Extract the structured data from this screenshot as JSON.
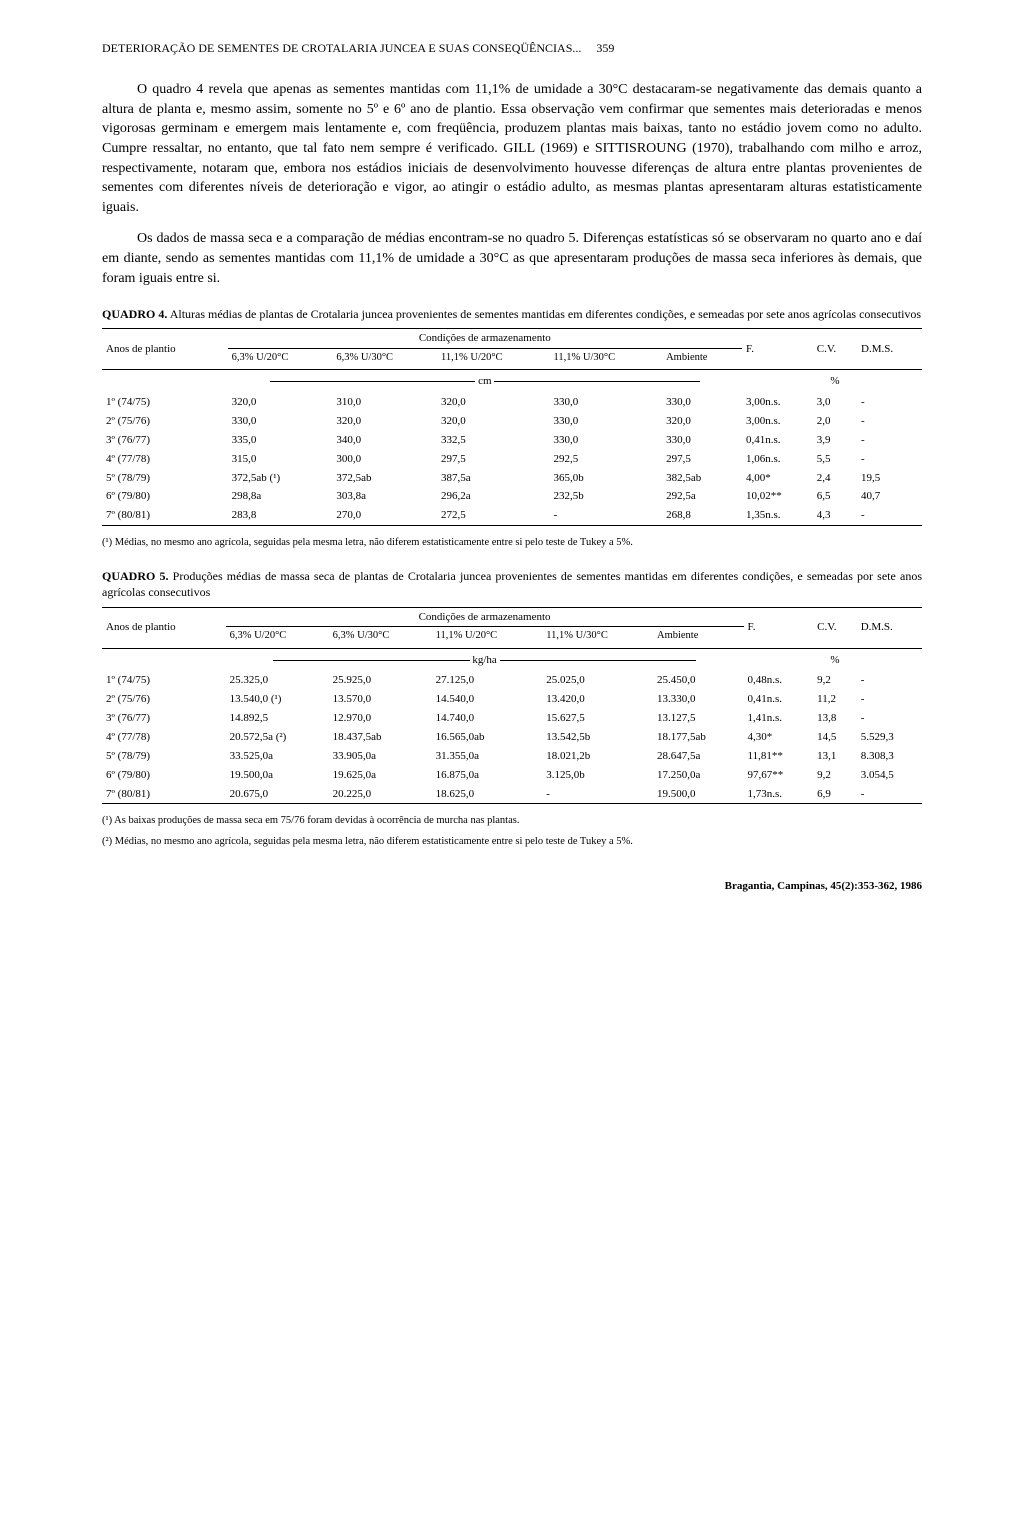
{
  "header": {
    "running_title": "DETERIORAÇÃO DE SEMENTES DE CROTALARIA JUNCEA E SUAS CONSEQÜÊNCIAS...",
    "page_number": "359"
  },
  "paragraphs": {
    "p1": "O quadro 4 revela que apenas as sementes mantidas com 11,1% de umidade a 30°C destacaram-se negativamente das demais quanto a altura de planta e, mesmo assim, somente no 5º e 6º ano de plantio. Essa observação vem confirmar que sementes mais deterioradas e menos vigorosas germinam e emergem mais lentamente e, com freqüência, produzem plantas mais baixas, tanto no estádio jovem como no adulto. Cumpre ressaltar, no entanto, que tal fato nem sempre é verificado. GILL (1969) e SITTISROUNG (1970), trabalhando com milho e arroz, respectivamente, notaram que, embora nos estádios iniciais de desenvolvimento houvesse diferenças de altura entre plantas provenientes de sementes com diferentes níveis de deterioração e vigor, ao atingir o estádio adulto, as mesmas plantas apresentaram alturas estatisticamente iguais.",
    "p2": "Os dados de massa seca e a comparação de médias encontram-se no quadro 5. Diferenças estatísticas só se observaram no quarto ano e daí em diante, sendo as sementes mantidas com 11,1% de umidade a 30°C as que apresentaram produções de massa seca inferiores às demais, que foram iguais entre si."
  },
  "table4": {
    "caption_label": "QUADRO 4.",
    "caption_text": "Alturas médias de plantas de Crotalaria juncea provenientes de sementes mantidas em diferentes condições, e semeadas por sete anos agrícolas consecutivos",
    "col_group_label": "Condições de armazenamento",
    "row_header": "Anos de plantio",
    "stat_cols": {
      "f": "F.",
      "cv": "C.V.",
      "dms": "D.M.S."
    },
    "cond_cols": [
      "6,3% U/20°C",
      "6,3% U/30°C",
      "11,1% U/20°C",
      "11,1% U/30°C",
      "Ambiente"
    ],
    "unit_left": "cm",
    "unit_right": "%",
    "rows": [
      {
        "year": "1º (74/75)",
        "c1": "320,0",
        "c2": "310,0",
        "c3": "320,0",
        "c4": "330,0",
        "c5": "330,0",
        "f": "3,00n.s.",
        "cv": "3,0",
        "dms": "-"
      },
      {
        "year": "2º (75/76)",
        "c1": "330,0",
        "c2": "320,0",
        "c3": "320,0",
        "c4": "330,0",
        "c5": "320,0",
        "f": "3,00n.s.",
        "cv": "2,0",
        "dms": "-"
      },
      {
        "year": "3º (76/77)",
        "c1": "335,0",
        "c2": "340,0",
        "c3": "332,5",
        "c4": "330,0",
        "c5": "330,0",
        "f": "0,41n.s.",
        "cv": "3,9",
        "dms": "-"
      },
      {
        "year": "4º (77/78)",
        "c1": "315,0",
        "c2": "300,0",
        "c3": "297,5",
        "c4": "292,5",
        "c5": "297,5",
        "f": "1,06n.s.",
        "cv": "5,5",
        "dms": "-"
      },
      {
        "year": "5º (78/79)",
        "c1": "372,5ab (¹)",
        "c2": "372,5ab",
        "c3": "387,5a",
        "c4": "365,0b",
        "c5": "382,5ab",
        "f": "4,00*",
        "cv": "2,4",
        "dms": "19,5"
      },
      {
        "year": "6º (79/80)",
        "c1": "298,8a",
        "c2": "303,8a",
        "c3": "296,2a",
        "c4": "232,5b",
        "c5": "292,5a",
        "f": "10,02**",
        "cv": "6,5",
        "dms": "40,7"
      },
      {
        "year": "7º (80/81)",
        "c1": "283,8",
        "c2": "270,0",
        "c3": "272,5",
        "c4": "-",
        "c5": "268,8",
        "f": "1,35n.s.",
        "cv": "4,3",
        "dms": "-"
      }
    ],
    "footnote1": "(¹) Médias, no mesmo ano agrícola, seguidas pela mesma letra, não diferem estatisticamente entre si pelo teste de Tukey a 5%."
  },
  "table5": {
    "caption_label": "QUADRO 5.",
    "caption_text": "Produções médias de massa seca de plantas de Crotalaria juncea provenientes de sementes mantidas em diferentes condições, e semeadas por sete anos agrícolas consecutivos",
    "col_group_label": "Condições de armazenamento",
    "row_header": "Anos de plantio",
    "stat_cols": {
      "f": "F.",
      "cv": "C.V.",
      "dms": "D.M.S."
    },
    "cond_cols": [
      "6,3% U/20°C",
      "6,3% U/30°C",
      "11,1% U/20°C",
      "11,1% U/30°C",
      "Ambiente"
    ],
    "unit_left": "kg/ha",
    "unit_right": "%",
    "rows": [
      {
        "year": "1º (74/75)",
        "c1": "25.325,0",
        "c2": "25.925,0",
        "c3": "27.125,0",
        "c4": "25.025,0",
        "c5": "25.450,0",
        "f": "0,48n.s.",
        "cv": "9,2",
        "dms": "-"
      },
      {
        "year": "2º (75/76)",
        "c1": "13.540,0 (¹)",
        "c2": "13.570,0",
        "c3": "14.540,0",
        "c4": "13.420,0",
        "c5": "13.330,0",
        "f": "0,41n.s.",
        "cv": "11,2",
        "dms": "-"
      },
      {
        "year": "3º (76/77)",
        "c1": "14.892,5",
        "c2": "12.970,0",
        "c3": "14.740,0",
        "c4": "15.627,5",
        "c5": "13.127,5",
        "f": "1,41n.s.",
        "cv": "13,8",
        "dms": "-"
      },
      {
        "year": "4º (77/78)",
        "c1": "20.572,5a (²)",
        "c2": "18.437,5ab",
        "c3": "16.565,0ab",
        "c4": "13.542,5b",
        "c5": "18.177,5ab",
        "f": "4,30*",
        "cv": "14,5",
        "dms": "5.529,3"
      },
      {
        "year": "5º (78/79)",
        "c1": "33.525,0a",
        "c2": "33.905,0a",
        "c3": "31.355,0a",
        "c4": "18.021,2b",
        "c5": "28.647,5a",
        "f": "11,81**",
        "cv": "13,1",
        "dms": "8.308,3"
      },
      {
        "year": "6º (79/80)",
        "c1": "19.500,0a",
        "c2": "19.625,0a",
        "c3": "16.875,0a",
        "c4": "3.125,0b",
        "c5": "17.250,0a",
        "f": "97,67**",
        "cv": "9,2",
        "dms": "3.054,5"
      },
      {
        "year": "7º (80/81)",
        "c1": "20.675,0",
        "c2": "20.225,0",
        "c3": "18.625,0",
        "c4": "-",
        "c5": "19.500,0",
        "f": "1,73n.s.",
        "cv": "6,9",
        "dms": "-"
      }
    ],
    "footnote1": "(¹) As baixas produções de massa seca em 75/76 foram devidas à ocorrência de murcha nas plantas.",
    "footnote2": "(²) Médias, no mesmo ano agrícola, seguidas pela mesma letra, não diferem estatisticamente entre si pelo teste de Tukey a 5%."
  },
  "journal_ref": "Bragantia, Campinas, 45(2):353-362, 1986"
}
